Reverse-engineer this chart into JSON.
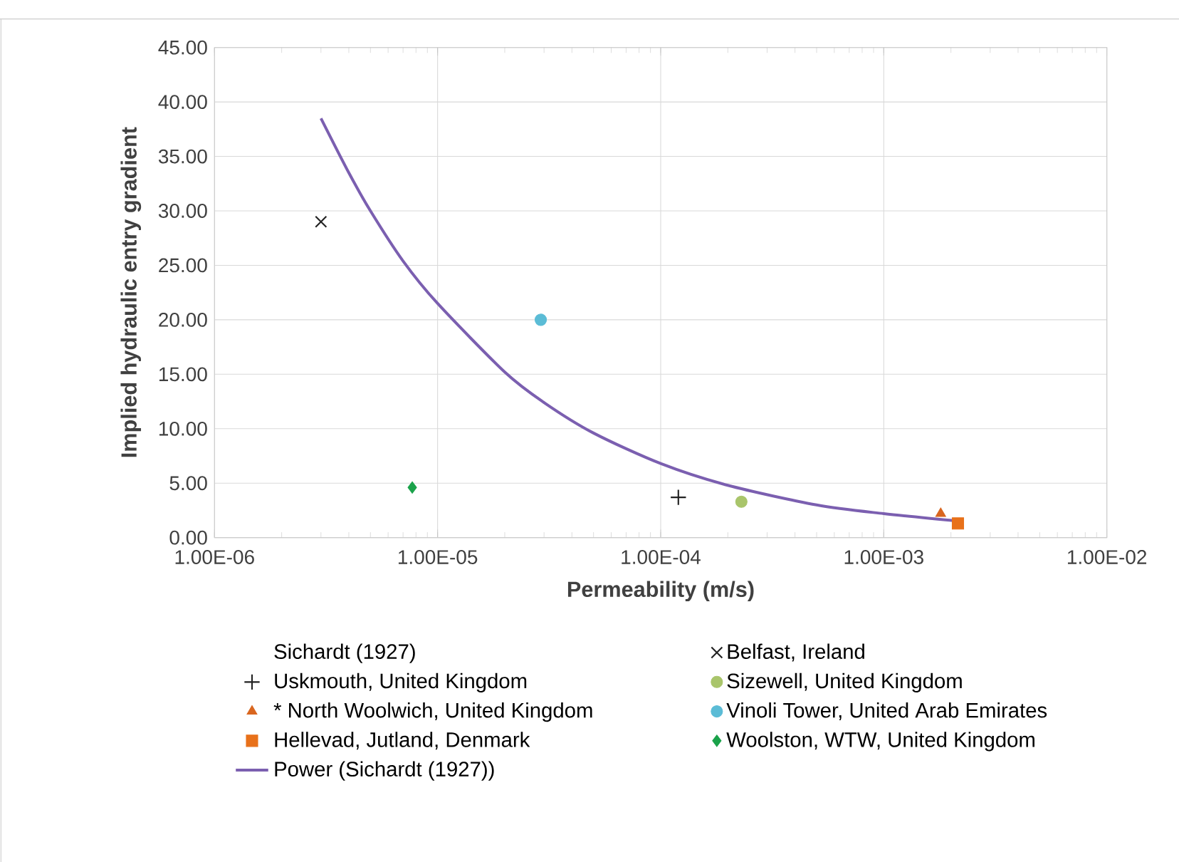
{
  "chart_data": {
    "type": "scatter",
    "xlabel": "Permeability (m/s)",
    "ylabel": "Implied hydraulic entry gradient",
    "log": "x",
    "grid": true,
    "legend": "bottom",
    "xlim": [
      1e-06,
      0.01
    ],
    "ylim": [
      0,
      45
    ],
    "xticks": [
      {
        "value": 1e-06,
        "label": "1.00E-06"
      },
      {
        "value": 1e-05,
        "label": "1.00E-05"
      },
      {
        "value": 0.0001,
        "label": "1.00E-04"
      },
      {
        "value": 0.001,
        "label": "1.00E-03"
      },
      {
        "value": 0.01,
        "label": "1.00E-02"
      }
    ],
    "yticks": [
      {
        "value": 0,
        "label": "0.00"
      },
      {
        "value": 5,
        "label": "5.00"
      },
      {
        "value": 10,
        "label": "10.00"
      },
      {
        "value": 15,
        "label": "15.00"
      },
      {
        "value": 20,
        "label": "20.00"
      },
      {
        "value": 25,
        "label": "25.00"
      },
      {
        "value": 30,
        "label": "30.00"
      },
      {
        "value": 35,
        "label": "35.00"
      },
      {
        "value": 40,
        "label": "40.00"
      },
      {
        "value": 45,
        "label": "45.00"
      }
    ],
    "series": [
      {
        "name": "Sichardt (1927)",
        "marker": "none"
      },
      {
        "name": "Belfast, Ireland",
        "color": "#222222",
        "marker": "cross",
        "x": [
          3e-06
        ],
        "values": [
          29
        ]
      },
      {
        "name": "Uskmouth, United Kingdom",
        "color": "#222222",
        "marker": "plus",
        "x": [
          0.00012
        ],
        "values": [
          3.7
        ]
      },
      {
        "name": "Sizewell, United Kingdom",
        "color": "#a9c56b",
        "marker": "circle",
        "x": [
          0.00023
        ],
        "values": [
          3.3
        ]
      },
      {
        "name": "* North Woolwich, United Kingdom",
        "color": "#d9661f",
        "marker": "triangle",
        "x": [
          0.0018
        ],
        "values": [
          2.2
        ]
      },
      {
        "name": "Vinoli Tower, United Arab Emirates",
        "color": "#5bbcd6",
        "marker": "circle",
        "x": [
          2.9e-05
        ],
        "values": [
          20
        ]
      },
      {
        "name": "Hellevad, Jutland, Denmark",
        "color": "#e8711a",
        "marker": "square",
        "x": [
          0.00215
        ],
        "values": [
          1.3
        ]
      },
      {
        "name": "Woolston, WTW, United Kingdom",
        "color": "#1aa24a",
        "marker": "diamond",
        "x": [
          7.7e-06
        ],
        "values": [
          4.6
        ]
      },
      {
        "name": "Power (Sichardt (1927))",
        "type": "line",
        "color": "#7b5fb0",
        "marker": "none",
        "line_style": "solid",
        "x": [
          3e-06,
          4e-06,
          5e-06,
          7e-06,
          1e-05,
          2e-05,
          3e-05,
          5e-05,
          0.0001,
          0.0002,
          0.0005,
          0.001,
          0.0022
        ],
        "values": [
          38.5,
          33.5,
          30,
          25.4,
          21.5,
          15.2,
          12.4,
          9.6,
          6.8,
          4.8,
          3.0,
          2.2,
          1.5
        ]
      }
    ]
  }
}
